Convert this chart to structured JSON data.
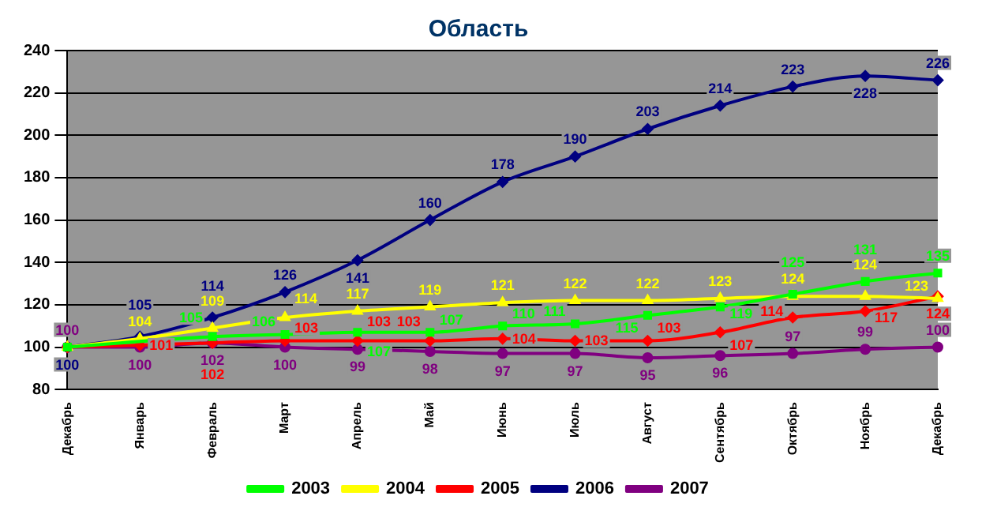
{
  "chart_data": {
    "type": "line",
    "title": "Область",
    "categories": [
      "Декабрь",
      "Январь",
      "Февраль",
      "Март",
      "Апрель",
      "Май",
      "Июнь",
      "Июль",
      "Август",
      "Сентябрь",
      "Октябрь",
      "Ноябрь",
      "Декабрь"
    ],
    "series": [
      {
        "name": "2003",
        "color": "#00ff00",
        "marker": "square",
        "values": [
          100,
          null,
          105,
          106,
          107,
          107,
          110,
          111,
          115,
          119,
          125,
          131,
          135
        ],
        "value_labels": [
          null,
          null,
          "105",
          "106",
          "107",
          "107",
          "110",
          "111",
          "115",
          "119",
          "125",
          "131",
          "135"
        ]
      },
      {
        "name": "2004",
        "color": "#ffff00",
        "marker": "triangle",
        "values": [
          100,
          104,
          109,
          114,
          117,
          119,
          121,
          122,
          122,
          123,
          124,
          124,
          123
        ],
        "value_labels": [
          null,
          "104",
          "109",
          "114",
          "117",
          "119",
          "121",
          "122",
          "122",
          "123",
          "124",
          "124",
          "123"
        ]
      },
      {
        "name": "2005",
        "color": "#ff0000",
        "marker": "diamond",
        "values": [
          100,
          101,
          102,
          103,
          103,
          103,
          104,
          103,
          103,
          107,
          114,
          117,
          124
        ],
        "value_labels": [
          null,
          "101",
          "102",
          "103",
          "103",
          "103",
          "104",
          "103",
          "103",
          "107",
          "114",
          "117",
          "124"
        ]
      },
      {
        "name": "2006",
        "color": "#000080",
        "marker": "diamond",
        "values": [
          100,
          105,
          114,
          126,
          141,
          160,
          178,
          190,
          203,
          214,
          223,
          228,
          226
        ],
        "value_labels": [
          "100",
          "105",
          "114",
          "126",
          "141",
          "160",
          "178",
          "190",
          "203",
          "214",
          "223",
          "228",
          "226"
        ]
      },
      {
        "name": "2007",
        "color": "#800080",
        "marker": "circle",
        "values": [
          100,
          100,
          102,
          100,
          99,
          98,
          97,
          97,
          95,
          96,
          97,
          99,
          100
        ],
        "value_labels": [
          "100",
          "100",
          "102",
          "100",
          "99",
          "98",
          "97",
          "97",
          "95",
          "96",
          "97",
          "99",
          "100"
        ]
      }
    ],
    "ylim": [
      80,
      240
    ],
    "yticks": [
      80,
      100,
      120,
      140,
      160,
      180,
      200,
      220,
      240
    ],
    "grid": "y",
    "legend": "bottom"
  }
}
